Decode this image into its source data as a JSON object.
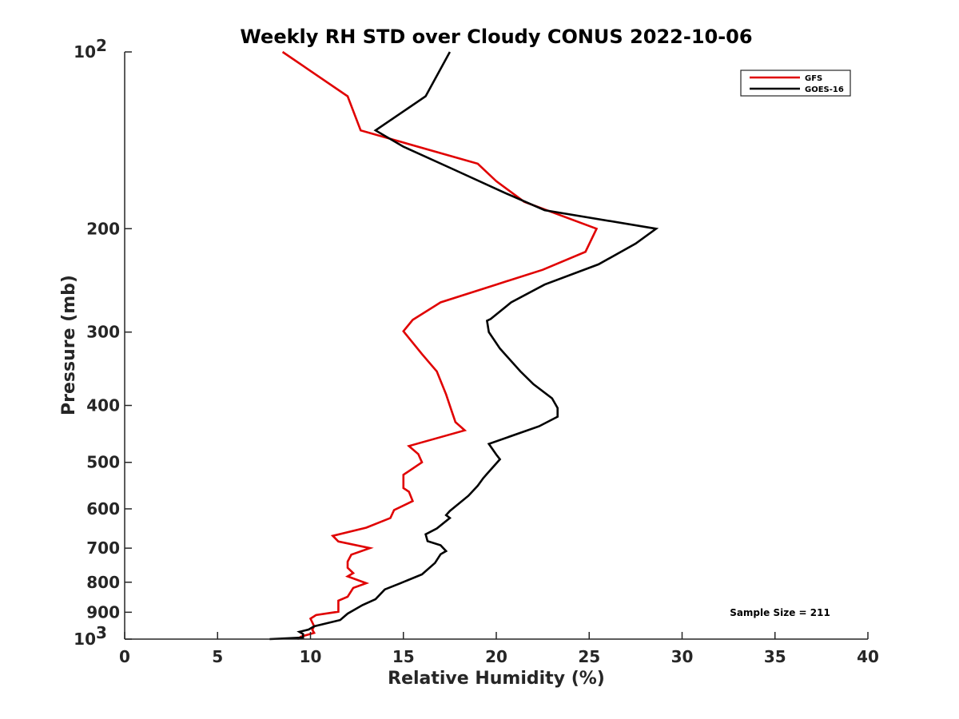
{
  "chart_data": {
    "type": "line",
    "title": "Weekly RH STD over Cloudy CONUS 2022-10-06",
    "xlabel": "Relative Humidity (%)",
    "ylabel": "Pressure (mb)",
    "xlim": [
      0,
      40
    ],
    "ylim": [
      100,
      1000
    ],
    "y_scale": "log",
    "y_reversed": true,
    "grid": false,
    "legend_placement": "top-right",
    "x_ticks": [
      "0",
      "5",
      "10",
      "15",
      "20",
      "25",
      "30",
      "35",
      "40"
    ],
    "y_ticks": [
      {
        "value": 100,
        "label": "10",
        "sup": "2"
      },
      {
        "value": 200,
        "label": "200",
        "sup": ""
      },
      {
        "value": 300,
        "label": "300",
        "sup": ""
      },
      {
        "value": 400,
        "label": "400",
        "sup": ""
      },
      {
        "value": 500,
        "label": "500",
        "sup": ""
      },
      {
        "value": 600,
        "label": "600",
        "sup": ""
      },
      {
        "value": 700,
        "label": "700",
        "sup": ""
      },
      {
        "value": 800,
        "label": "800",
        "sup": ""
      },
      {
        "value": 900,
        "label": "900",
        "sup": ""
      },
      {
        "value": 1000,
        "label": "10",
        "sup": "3"
      }
    ],
    "annotation": "Sample Size = 211",
    "series": [
      {
        "name": "GFS",
        "color": "#e00000",
        "points": [
          [
            8.5,
            100
          ],
          [
            12.0,
            119
          ],
          [
            12.7,
            136
          ],
          [
            19.0,
            155
          ],
          [
            20.0,
            166
          ],
          [
            21.5,
            180
          ],
          [
            25.4,
            200
          ],
          [
            24.8,
            219
          ],
          [
            22.5,
            235
          ],
          [
            20.0,
            249
          ],
          [
            17.0,
            267
          ],
          [
            15.5,
            286
          ],
          [
            15.0,
            299
          ],
          [
            16.0,
            327
          ],
          [
            16.8,
            350
          ],
          [
            17.3,
            383
          ],
          [
            17.6,
            409
          ],
          [
            17.8,
            427
          ],
          [
            18.3,
            441
          ],
          [
            15.3,
            469
          ],
          [
            15.8,
            484
          ],
          [
            16.0,
            500
          ],
          [
            15.0,
            525
          ],
          [
            15.0,
            553
          ],
          [
            15.3,
            561
          ],
          [
            15.5,
            582
          ],
          [
            14.5,
            603
          ],
          [
            14.3,
            622
          ],
          [
            13.0,
            646
          ],
          [
            11.2,
            667
          ],
          [
            11.5,
            682
          ],
          [
            13.2,
            700
          ],
          [
            12.2,
            718
          ],
          [
            12.0,
            738
          ],
          [
            12.0,
            756
          ],
          [
            12.3,
            772
          ],
          [
            12.0,
            782
          ],
          [
            13.0,
            803
          ],
          [
            12.3,
            818
          ],
          [
            12.0,
            847
          ],
          [
            11.5,
            860
          ],
          [
            11.5,
            898
          ],
          [
            10.3,
            910
          ],
          [
            10.0,
            923
          ],
          [
            10.2,
            951
          ],
          [
            10.1,
            964
          ],
          [
            10.2,
            976
          ],
          [
            9.5,
            990
          ],
          [
            9.3,
            1000
          ]
        ]
      },
      {
        "name": "GOES-16",
        "color": "#000000",
        "points": [
          [
            17.5,
            100
          ],
          [
            16.2,
            119
          ],
          [
            13.5,
            136
          ],
          [
            15.0,
            145
          ],
          [
            17.6,
            158
          ],
          [
            20.5,
            174
          ],
          [
            22.6,
            186
          ],
          [
            28.6,
            200
          ],
          [
            27.5,
            212
          ],
          [
            25.5,
            230
          ],
          [
            22.6,
            249
          ],
          [
            20.8,
            267
          ],
          [
            19.7,
            285
          ],
          [
            19.5,
            287
          ],
          [
            19.6,
            300
          ],
          [
            20.2,
            320
          ],
          [
            21.3,
            350
          ],
          [
            22.0,
            368
          ],
          [
            23.0,
            389
          ],
          [
            23.3,
            404
          ],
          [
            23.3,
            418
          ],
          [
            22.3,
            434
          ],
          [
            19.6,
            465
          ],
          [
            20.0,
            485
          ],
          [
            20.2,
            494
          ],
          [
            19.5,
            523
          ],
          [
            19.3,
            532
          ],
          [
            19.0,
            548
          ],
          [
            18.5,
            570
          ],
          [
            17.5,
            605
          ],
          [
            17.3,
            615
          ],
          [
            17.5,
            622
          ],
          [
            16.8,
            648
          ],
          [
            16.2,
            663
          ],
          [
            16.3,
            681
          ],
          [
            17.0,
            692
          ],
          [
            17.3,
            708
          ],
          [
            17.0,
            717
          ],
          [
            16.7,
            742
          ],
          [
            16.0,
            776
          ],
          [
            14.8,
            804
          ],
          [
            14.0,
            823
          ],
          [
            13.5,
            855
          ],
          [
            12.8,
            875
          ],
          [
            12.0,
            905
          ],
          [
            11.6,
            928
          ],
          [
            10.2,
            951
          ],
          [
            9.9,
            963
          ],
          [
            9.4,
            972
          ],
          [
            9.6,
            980
          ],
          [
            9.6,
            994
          ],
          [
            7.8,
            1000
          ]
        ]
      }
    ]
  }
}
